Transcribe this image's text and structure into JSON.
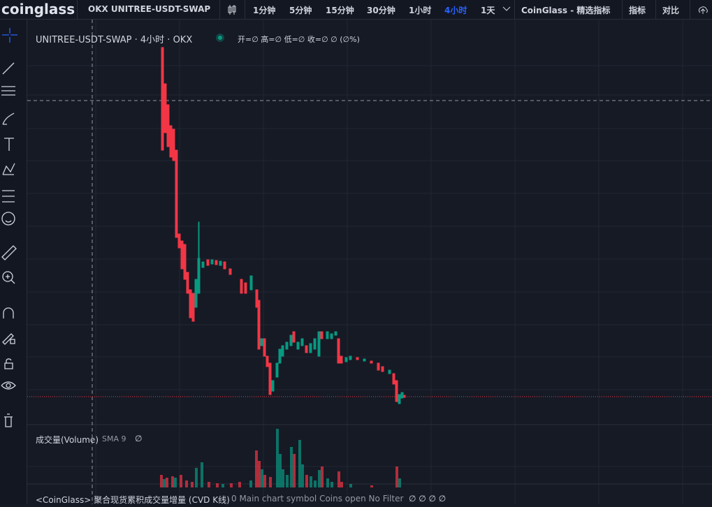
{
  "header": {
    "logo": "coinglass",
    "symbol": "OKX UNITREE-USDT-SWAP",
    "intervals": [
      "1分钟",
      "5分钟",
      "15分钟",
      "30分钟",
      "1小时",
      "4小时",
      "1天"
    ],
    "active_interval": 5,
    "indicator_set": "CoinGlass - 精选指标",
    "indicators": "指标",
    "compare": "对比"
  },
  "main_pane": {
    "legend": "UNITREE-USDT-SWAP · 4小时 · OKX",
    "ohlc": "开=∅ 高=∅ 低=∅ 收=∅ ∅ (∅%)"
  },
  "volume_pane": {
    "title": "成交量(Volume)",
    "sma": "SMA 9",
    "value": "∅"
  },
  "cvd_pane": {
    "title": "<CoinGlass> 聚合现货累积成交量增量 (CVD K线)",
    "settings": "0 Main chart symbol Coins open No Filter",
    "values": "∅ ∅ ∅ ∅"
  }
}
